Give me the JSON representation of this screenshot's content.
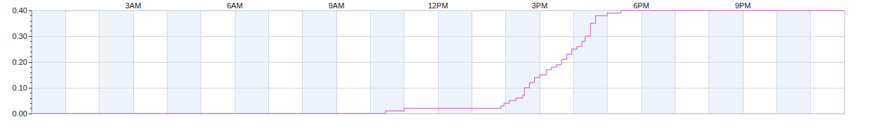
{
  "chart_data": {
    "type": "line",
    "line_style": "step",
    "color": "#e07ee0",
    "grid": true,
    "x": [
      0,
      10.45,
      11.0,
      13.85,
      13.95,
      14.1,
      14.3,
      14.5,
      14.55,
      14.7,
      14.85,
      15.0,
      15.2,
      15.35,
      15.5,
      15.65,
      15.8,
      15.95,
      16.1,
      16.25,
      16.35,
      16.5,
      16.65,
      17.0,
      17.4,
      24
    ],
    "values": [
      0.0,
      0.01,
      0.02,
      0.03,
      0.04,
      0.05,
      0.06,
      0.07,
      0.1,
      0.12,
      0.14,
      0.15,
      0.17,
      0.18,
      0.19,
      0.21,
      0.23,
      0.25,
      0.26,
      0.28,
      0.3,
      0.35,
      0.38,
      0.39,
      0.4,
      0.4
    ],
    "xlim": [
      0,
      24
    ],
    "xticks": [
      {
        "value": 3,
        "label": "3AM"
      },
      {
        "value": 6,
        "label": "6AM"
      },
      {
        "value": 9,
        "label": "9AM"
      },
      {
        "value": 12,
        "label": "12PM"
      },
      {
        "value": 15,
        "label": "3PM"
      },
      {
        "value": 18,
        "label": "6PM"
      },
      {
        "value": 21,
        "label": "9PM"
      }
    ],
    "ylim": [
      0,
      0.4
    ],
    "yticks": [
      {
        "value": 0,
        "label": "0.00"
      },
      {
        "value": 0.1,
        "label": "0.10"
      },
      {
        "value": 0.2,
        "label": "0.20"
      },
      {
        "value": 0.3,
        "label": "0.30"
      },
      {
        "value": 0.4,
        "label": "0.40"
      }
    ]
  }
}
